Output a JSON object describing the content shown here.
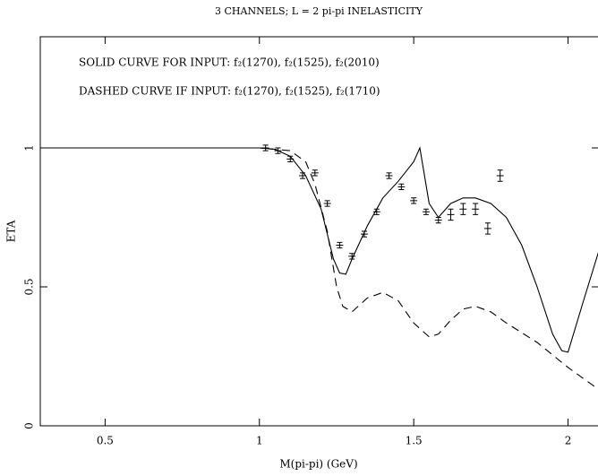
{
  "chart_data": {
    "type": "line",
    "title": "3 CHANNELS;  L = 2  pi-pi INELASTICITY",
    "x_label": "M(pi-pi) (GeV)",
    "y_label": "ETA",
    "annotations": [
      "SOLID CURVE FOR INPUT: f₂(1270), f₂(1525), f₂(2010)",
      "DASHED CURVE IF INPUT: f₂(1270), f₂(1525), f₂(1710)"
    ],
    "xlim": [
      0.29,
      2.1
    ],
    "ylim": [
      0,
      1.4
    ],
    "xticks": [
      0.5,
      1,
      1.5,
      2
    ],
    "yticks": [
      0,
      0.5,
      1
    ],
    "series": [
      {
        "style": "solid",
        "color": "#000000",
        "x": [
          0.29,
          1.0,
          1.05,
          1.1,
          1.15,
          1.2,
          1.24,
          1.26,
          1.28,
          1.3,
          1.35,
          1.4,
          1.45,
          1.5,
          1.52,
          1.55,
          1.58,
          1.62,
          1.66,
          1.7,
          1.75,
          1.8,
          1.85,
          1.9,
          1.95,
          1.98,
          2.0,
          2.05,
          2.1
        ],
        "values": [
          1,
          1,
          0.995,
          0.97,
          0.9,
          0.78,
          0.6,
          0.55,
          0.545,
          0.6,
          0.72,
          0.82,
          0.88,
          0.95,
          1.0,
          0.8,
          0.75,
          0.8,
          0.82,
          0.82,
          0.8,
          0.75,
          0.65,
          0.5,
          0.33,
          0.27,
          0.265,
          0.45,
          0.63
        ]
      },
      {
        "style": "dashed",
        "color": "#000000",
        "x": [
          0.29,
          1.0,
          1.1,
          1.15,
          1.18,
          1.22,
          1.25,
          1.27,
          1.3,
          1.35,
          1.4,
          1.45,
          1.5,
          1.55,
          1.58,
          1.62,
          1.66,
          1.7,
          1.75,
          1.8,
          1.9,
          2.0,
          2.1
        ],
        "values": [
          1,
          1,
          0.99,
          0.95,
          0.87,
          0.7,
          0.5,
          0.43,
          0.41,
          0.46,
          0.48,
          0.45,
          0.37,
          0.32,
          0.33,
          0.38,
          0.42,
          0.43,
          0.41,
          0.37,
          0.3,
          0.21,
          0.13
        ]
      },
      {
        "style": "errorbar",
        "color": "#000000",
        "x": [
          1.02,
          1.06,
          1.1,
          1.14,
          1.18,
          1.22,
          1.26,
          1.3,
          1.34,
          1.38,
          1.42,
          1.46,
          1.5,
          1.54,
          1.58,
          1.62,
          1.66,
          1.7,
          1.74,
          1.78
        ],
        "values": [
          1.0,
          0.99,
          0.96,
          0.9,
          0.91,
          0.8,
          0.65,
          0.61,
          0.69,
          0.77,
          0.9,
          0.86,
          0.81,
          0.77,
          0.74,
          0.76,
          0.78,
          0.78,
          0.71,
          0.9
        ],
        "errors": [
          0.01,
          0.01,
          0.01,
          0.01,
          0.01,
          0.01,
          0.01,
          0.01,
          0.01,
          0.01,
          0.01,
          0.01,
          0.01,
          0.01,
          0.01,
          0.02,
          0.02,
          0.02,
          0.02,
          0.02
        ]
      }
    ]
  }
}
